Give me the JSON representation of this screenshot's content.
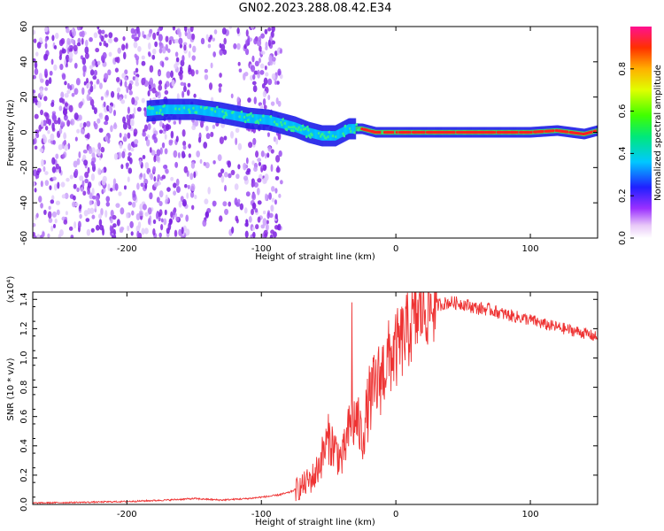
{
  "title": "GN02.2023.288.08.42.E34",
  "colors": {
    "snr_line": "#ee3333",
    "axis": "#000000",
    "spectrogram_weak": "#8a2be2"
  },
  "chart_data": [
    {
      "type": "heatmap",
      "xlabel": "Height of straight line (km)",
      "ylabel": "Frequency (Hz)",
      "xlim": [
        -270,
        150
      ],
      "ylim": [
        -60,
        60
      ],
      "xticks": [
        "-200",
        "-100",
        "0",
        "100"
      ],
      "yticks": [
        "-60",
        "-40",
        "-20",
        "0",
        "20",
        "40",
        "60"
      ],
      "colorbar": {
        "label": "Normalized spectral amplitude",
        "range": [
          0,
          1
        ],
        "ticks": [
          "0.0",
          "0.2",
          "0.4",
          "0.6",
          "0.8"
        ],
        "colormap": "rainbow (purple to red)"
      },
      "ridge": {
        "description_points_x": [
          -185,
          -170,
          -150,
          -130,
          -110,
          -95,
          -85,
          -75,
          -65,
          -55,
          -45,
          -35,
          -25,
          -15,
          0,
          50,
          100,
          120,
          140,
          150
        ],
        "description_points_y": [
          12,
          13,
          13,
          11,
          8,
          7,
          5,
          3,
          0,
          -2,
          -2,
          2,
          2,
          0,
          0,
          0,
          0,
          1,
          -1,
          1
        ],
        "amplitude": [
          0.25,
          0.3,
          0.35,
          0.4,
          0.35,
          0.4,
          0.45,
          0.5,
          0.55,
          0.6,
          0.65,
          0.7,
          0.8,
          0.9,
          0.9,
          0.88,
          0.9,
          0.9,
          0.85,
          0.9
        ]
      },
      "noise_region": [
        -270,
        -95
      ]
    },
    {
      "type": "line",
      "xlabel": "Height of straight line (km)",
      "ylabel": "SNR (10 * v/v)",
      "y_multiplier": "(x10⁴)",
      "xlim": [
        -270,
        150
      ],
      "ylim": [
        0,
        1.45
      ],
      "xticks": [
        "-200",
        "-100",
        "0",
        "100"
      ],
      "yticks": [
        "0.0",
        "0.2",
        "0.4",
        "0.6",
        "0.8",
        "1.0",
        "1.2",
        "1.4"
      ],
      "series": [
        {
          "color": "#ee3333",
          "x": [
            -270,
            -230,
            -200,
            -170,
            -150,
            -130,
            -110,
            -100,
            -90,
            -80,
            -70,
            -60,
            -50,
            -40,
            -35,
            -30,
            -25,
            -20,
            -15,
            -10,
            -5,
            0,
            10,
            20,
            30,
            40,
            50,
            60,
            70,
            80,
            90,
            100,
            110,
            120,
            130,
            140,
            150
          ],
          "y": [
            0.01,
            0.015,
            0.02,
            0.03,
            0.04,
            0.03,
            0.04,
            0.05,
            0.06,
            0.08,
            0.12,
            0.2,
            0.45,
            0.3,
            0.5,
            0.6,
            0.45,
            0.7,
            0.8,
            0.9,
            1.0,
            1.05,
            1.2,
            1.33,
            1.36,
            1.38,
            1.37,
            1.34,
            1.33,
            1.3,
            1.28,
            1.26,
            1.23,
            1.21,
            1.19,
            1.17,
            1.14
          ]
        }
      ]
    }
  ]
}
